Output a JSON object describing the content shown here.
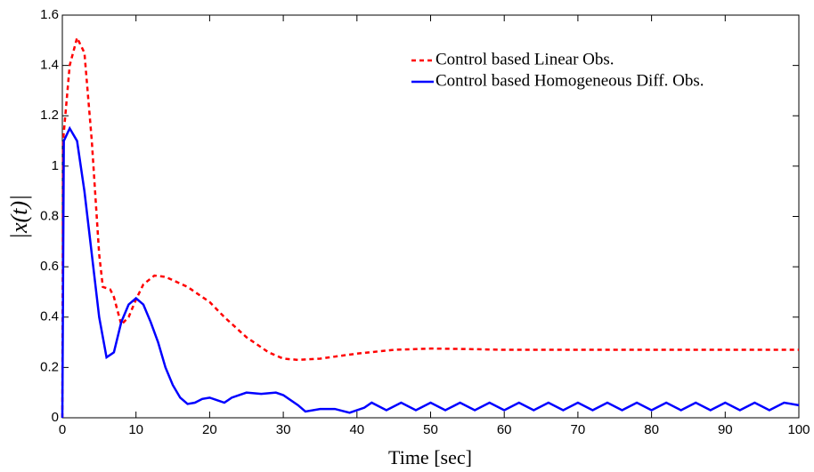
{
  "chart_data": {
    "type": "line",
    "xlabel": "Time [sec]",
    "ylabel": "|x(t)|",
    "xlim": [
      0,
      100
    ],
    "ylim": [
      0,
      1.6
    ],
    "xticks": [
      0,
      10,
      20,
      30,
      40,
      50,
      60,
      70,
      80,
      90,
      100
    ],
    "yticks": [
      0,
      0.2,
      0.4,
      0.6,
      0.8,
      1,
      1.2,
      1.4,
      1.6
    ],
    "legend": "upper right",
    "series": [
      {
        "name": "Control based Linear Obs.",
        "color": "#ff0000",
        "dash": true,
        "x": [
          0,
          0.1,
          1,
          2,
          3,
          4,
          5,
          5.5,
          6.5,
          7,
          8,
          9,
          10,
          11,
          12.5,
          14,
          17,
          20,
          22,
          25,
          28,
          30,
          32,
          35,
          40,
          45,
          50,
          55,
          60,
          70,
          80,
          90,
          100
        ],
        "values": [
          0,
          1.1,
          1.4,
          1.51,
          1.45,
          1.1,
          0.65,
          0.52,
          0.51,
          0.48,
          0.37,
          0.4,
          0.47,
          0.53,
          0.565,
          0.56,
          0.52,
          0.46,
          0.4,
          0.32,
          0.26,
          0.235,
          0.23,
          0.235,
          0.255,
          0.27,
          0.275,
          0.273,
          0.27,
          0.27,
          0.27,
          0.27,
          0.27
        ]
      },
      {
        "name": "Control based Homogeneous Diff. Obs.",
        "color": "#0000ff",
        "dash": false,
        "x": [
          0,
          0.2,
          1,
          2,
          3,
          4,
          5,
          6,
          7,
          8,
          9,
          10,
          11,
          12,
          13,
          14,
          15,
          16,
          17,
          18,
          19,
          20,
          21,
          22,
          23,
          25,
          27,
          29,
          30,
          32,
          33,
          35,
          37,
          39,
          41,
          42,
          44,
          46,
          48,
          50,
          52,
          54,
          56,
          58,
          60,
          62,
          64,
          66,
          68,
          70,
          72,
          74,
          76,
          78,
          80,
          82,
          84,
          86,
          88,
          90,
          92,
          94,
          96,
          98,
          100
        ],
        "values": [
          0,
          1.1,
          1.15,
          1.1,
          0.9,
          0.65,
          0.4,
          0.24,
          0.26,
          0.38,
          0.45,
          0.475,
          0.45,
          0.38,
          0.3,
          0.2,
          0.13,
          0.08,
          0.055,
          0.06,
          0.075,
          0.08,
          0.07,
          0.06,
          0.08,
          0.1,
          0.095,
          0.1,
          0.09,
          0.05,
          0.025,
          0.035,
          0.035,
          0.02,
          0.04,
          0.06,
          0.03,
          0.06,
          0.03,
          0.06,
          0.03,
          0.06,
          0.03,
          0.06,
          0.03,
          0.06,
          0.03,
          0.06,
          0.03,
          0.06,
          0.03,
          0.06,
          0.03,
          0.06,
          0.03,
          0.06,
          0.03,
          0.06,
          0.03,
          0.06,
          0.03,
          0.06,
          0.03,
          0.06,
          0.05
        ]
      }
    ]
  }
}
